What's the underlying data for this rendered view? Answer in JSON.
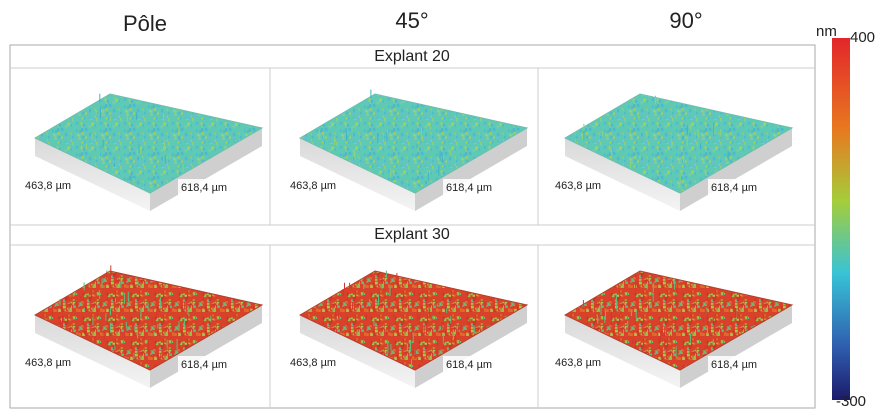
{
  "columns": [
    "Pôle",
    "45°",
    "90°"
  ],
  "rows": [
    {
      "title": "Explant 20",
      "cells": [
        {
          "width_label": "463,8 µm",
          "length_label": "618,4 µm"
        },
        {
          "width_label": "463,8 µm",
          "length_label": "618,4 µm"
        },
        {
          "width_label": "463,8 µm",
          "length_label": "618,4 µm"
        }
      ]
    },
    {
      "title": "Explant 30",
      "cells": [
        {
          "width_label": "463,8 µm",
          "length_label": "618,4 µm"
        },
        {
          "width_label": "463,8 µm",
          "length_label": "618,4 µm"
        },
        {
          "width_label": "463,8 µm",
          "length_label": "618,4 µm"
        }
      ]
    }
  ],
  "colorbar": {
    "unit": "nm",
    "max": 400,
    "min": -300
  }
}
